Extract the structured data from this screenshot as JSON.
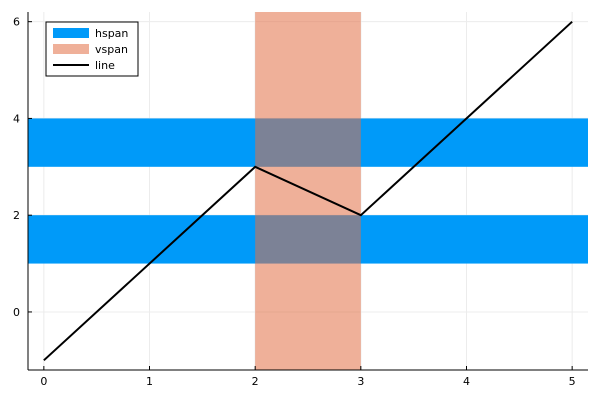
{
  "chart_data": {
    "type": "line",
    "title": "",
    "xlabel": "",
    "ylabel": "",
    "xlim": [
      -0.15,
      5.15
    ],
    "ylim": [
      -1.2,
      6.2
    ],
    "xticks": [
      0,
      1,
      2,
      3,
      4,
      5
    ],
    "yticks": [
      0,
      2,
      4,
      6
    ],
    "grid": true,
    "legend_position": "top-left",
    "hspans": {
      "name": "hspan",
      "color": "#009af9",
      "ranges": [
        [
          1,
          2
        ],
        [
          3,
          4
        ]
      ]
    },
    "vspans": {
      "name": "vspan",
      "color": "#e26f46",
      "opacity": 0.55,
      "ranges": [
        [
          2,
          3
        ]
      ]
    },
    "series": [
      {
        "name": "line",
        "color": "#000000",
        "x": [
          0,
          2,
          3,
          5
        ],
        "y": [
          -1,
          3,
          2,
          6
        ]
      }
    ]
  },
  "legend": {
    "items": [
      {
        "label": "hspan",
        "color": "#009af9",
        "kind": "patch"
      },
      {
        "label": "vspan",
        "color": "#e26f46",
        "kind": "patch"
      },
      {
        "label": "line",
        "color": "#000000",
        "kind": "line"
      }
    ]
  }
}
